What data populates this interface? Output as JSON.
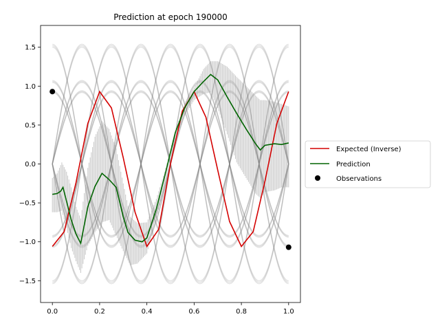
{
  "chart_data": {
    "type": "line",
    "title": "Prediction at epoch 190000",
    "xlabel": "",
    "ylabel": "",
    "xlim": [
      -0.05,
      1.05
    ],
    "ylim": [
      -1.78,
      1.78
    ],
    "x_ticks": [
      0.0,
      0.2,
      0.4,
      0.6,
      0.8,
      1.0
    ],
    "x_tick_labels": [
      "0.0",
      "0.2",
      "0.4",
      "0.6",
      "0.8",
      "1.0"
    ],
    "y_ticks": [
      -1.5,
      -1.0,
      -0.5,
      0.0,
      0.5,
      1.0,
      1.5
    ],
    "y_tick_labels": [
      "−1.5",
      "−1.0",
      "−0.5",
      "0.0",
      "0.5",
      "1.0",
      "1.5"
    ],
    "grid": false,
    "legend_position": "right-outside",
    "background_curves": {
      "color": "#808080",
      "amplitudes": [
        1.52,
        1.06,
        0.93
      ],
      "frequency_cycles": 2,
      "signs": [
        1,
        -1
      ],
      "phases": [
        "sin",
        "cos"
      ]
    },
    "series": [
      {
        "name": "Expected (Inverse)",
        "color": "#d40000",
        "function": "-1.06*cos(4*pi*x) style inverse target",
        "x": [
          0.0,
          0.05,
          0.1,
          0.15,
          0.2,
          0.25,
          0.3,
          0.35,
          0.4,
          0.45,
          0.5,
          0.55,
          0.6,
          0.65,
          0.7,
          0.75,
          0.8,
          0.85,
          0.9,
          0.95,
          1.0
        ],
        "y": [
          -1.06,
          -0.87,
          -0.24,
          0.52,
          0.93,
          0.72,
          0.08,
          -0.62,
          -1.06,
          -0.84,
          0.0,
          0.68,
          0.93,
          0.6,
          -0.08,
          -0.74,
          -1.06,
          -0.87,
          -0.22,
          0.52,
          0.93
        ]
      },
      {
        "name": "Prediction",
        "color": "#006400",
        "x": [
          0.0,
          0.02,
          0.035,
          0.045,
          0.06,
          0.08,
          0.1,
          0.12,
          0.15,
          0.18,
          0.21,
          0.24,
          0.27,
          0.3,
          0.32,
          0.35,
          0.38,
          0.4,
          0.44,
          0.48,
          0.52,
          0.56,
          0.6,
          0.64,
          0.67,
          0.7,
          0.74,
          0.78,
          0.82,
          0.86,
          0.88,
          0.9,
          0.94,
          0.97,
          1.0
        ],
        "y": [
          -0.39,
          -0.38,
          -0.35,
          -0.3,
          -0.48,
          -0.72,
          -0.9,
          -1.02,
          -0.55,
          -0.29,
          -0.12,
          -0.2,
          -0.3,
          -0.68,
          -0.88,
          -0.98,
          -1.0,
          -0.95,
          -0.58,
          -0.1,
          0.4,
          0.72,
          0.93,
          1.06,
          1.15,
          1.08,
          0.86,
          0.65,
          0.45,
          0.26,
          0.18,
          0.24,
          0.26,
          0.25,
          0.27
        ]
      }
    ],
    "uncertainty_band": {
      "color": "#9a9a9a",
      "x": [
        0.0,
        0.02,
        0.04,
        0.06,
        0.08,
        0.1,
        0.12,
        0.15,
        0.18,
        0.21,
        0.24,
        0.27,
        0.3,
        0.33,
        0.36,
        0.4,
        0.44,
        0.48,
        0.52,
        0.56,
        0.6,
        0.64,
        0.67,
        0.7,
        0.74,
        0.78,
        0.82,
        0.86,
        0.88,
        0.9,
        0.94,
        0.97,
        1.0
      ],
      "upper": [
        -0.18,
        -0.12,
        0.02,
        -0.1,
        -0.3,
        -0.55,
        -0.7,
        -0.05,
        0.35,
        0.55,
        0.45,
        0.2,
        -0.25,
        -0.68,
        -0.76,
        -0.75,
        -0.45,
        -0.05,
        0.42,
        0.78,
        0.98,
        1.22,
        1.32,
        1.32,
        1.25,
        1.12,
        1.0,
        0.88,
        0.82,
        0.82,
        0.8,
        0.77,
        0.74
      ],
      "lower": [
        -0.62,
        -0.62,
        -0.6,
        -0.82,
        -1.08,
        -1.25,
        -1.4,
        -1.05,
        -0.88,
        -0.75,
        -0.72,
        -0.92,
        -1.12,
        -1.3,
        -1.28,
        -1.15,
        -0.7,
        -0.25,
        0.3,
        0.62,
        0.82,
        0.9,
        0.92,
        0.72,
        0.38,
        0.02,
        -0.18,
        -0.38,
        -0.44,
        -0.36,
        -0.34,
        -0.3,
        -0.3
      ]
    },
    "observations": {
      "name": "Observations",
      "color": "#000000",
      "x": [
        0.0,
        1.0
      ],
      "y": [
        0.93,
        -1.07
      ]
    }
  }
}
